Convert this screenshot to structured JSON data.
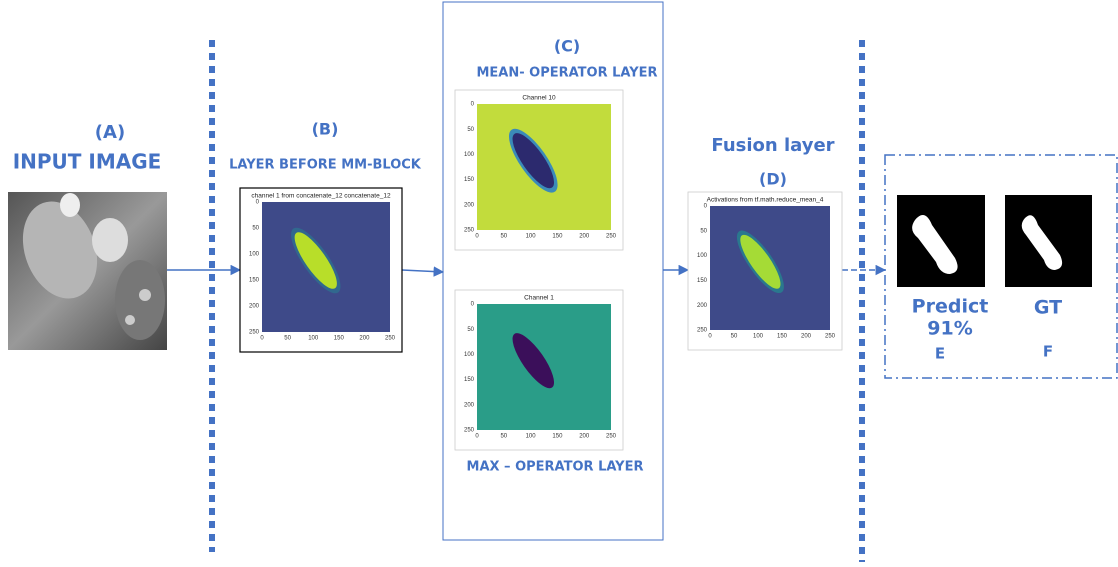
{
  "panels": {
    "a": {
      "label": "(A)",
      "title": "INPUT IMAGE"
    },
    "b": {
      "label": "(B)",
      "title": "LAYER BEFORE MM-BLOCK",
      "plot_title": "channel 1 from concatenate_12 concatenate_12"
    },
    "c": {
      "label": "(C)",
      "title": "MEAN- OPERATOR LAYER",
      "plot_title": "Channel 10",
      "bottom_title": "MAX – OPERATOR LAYER",
      "bottom_plot_title": "Channel 1"
    },
    "d": {
      "title": "Fusion layer",
      "label": "(D)",
      "plot_title": "Activations from tf.math.reduce_mean_4"
    },
    "e": {
      "title": "Predict",
      "score": "91%",
      "label": "E"
    },
    "f": {
      "title": "GT",
      "label": "F"
    }
  },
  "plot_ticks": {
    "x": [
      0,
      50,
      100,
      150,
      200,
      250
    ],
    "y": [
      0,
      50,
      100,
      150,
      200,
      250
    ]
  }
}
